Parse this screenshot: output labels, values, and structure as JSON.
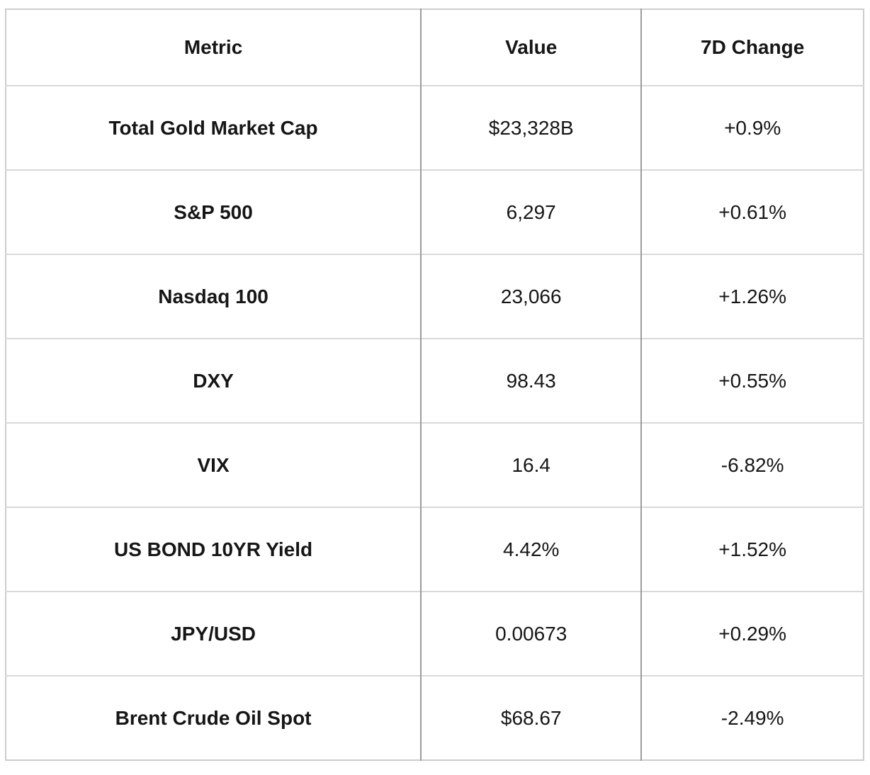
{
  "chart_data": {
    "type": "table",
    "title": "",
    "columns": [
      "Metric",
      "Value",
      "7D Change"
    ],
    "rows": [
      {
        "metric": "Total Gold Market Cap",
        "value": "$23,328B",
        "change": "+0.9%"
      },
      {
        "metric": "S&P 500",
        "value": "6,297",
        "change": "+0.61%"
      },
      {
        "metric": "Nasdaq 100",
        "value": "23,066",
        "change": "+1.26%"
      },
      {
        "metric": "DXY",
        "value": "98.43",
        "change": "+0.55%"
      },
      {
        "metric": "VIX",
        "value": "16.4",
        "change": "-6.82%"
      },
      {
        "metric": "US BOND 10YR Yield",
        "value": "4.42%",
        "change": "+1.52%"
      },
      {
        "metric": "JPY/USD",
        "value": "0.00673",
        "change": "+0.29%"
      },
      {
        "metric": "Brent Crude Oil Spot",
        "value": "$68.67",
        "change": "-2.49%"
      }
    ],
    "layout": {
      "grid": "on",
      "cell_text_align": "center",
      "metric_column_bold": true,
      "header_bold": true
    },
    "colors": {
      "background": "#ffffff",
      "text": "#161616",
      "outer_border": "#cdcdcd",
      "vertical_gridline": "#9b9b9b",
      "horizontal_gridline": "#d9d9d9"
    }
  }
}
